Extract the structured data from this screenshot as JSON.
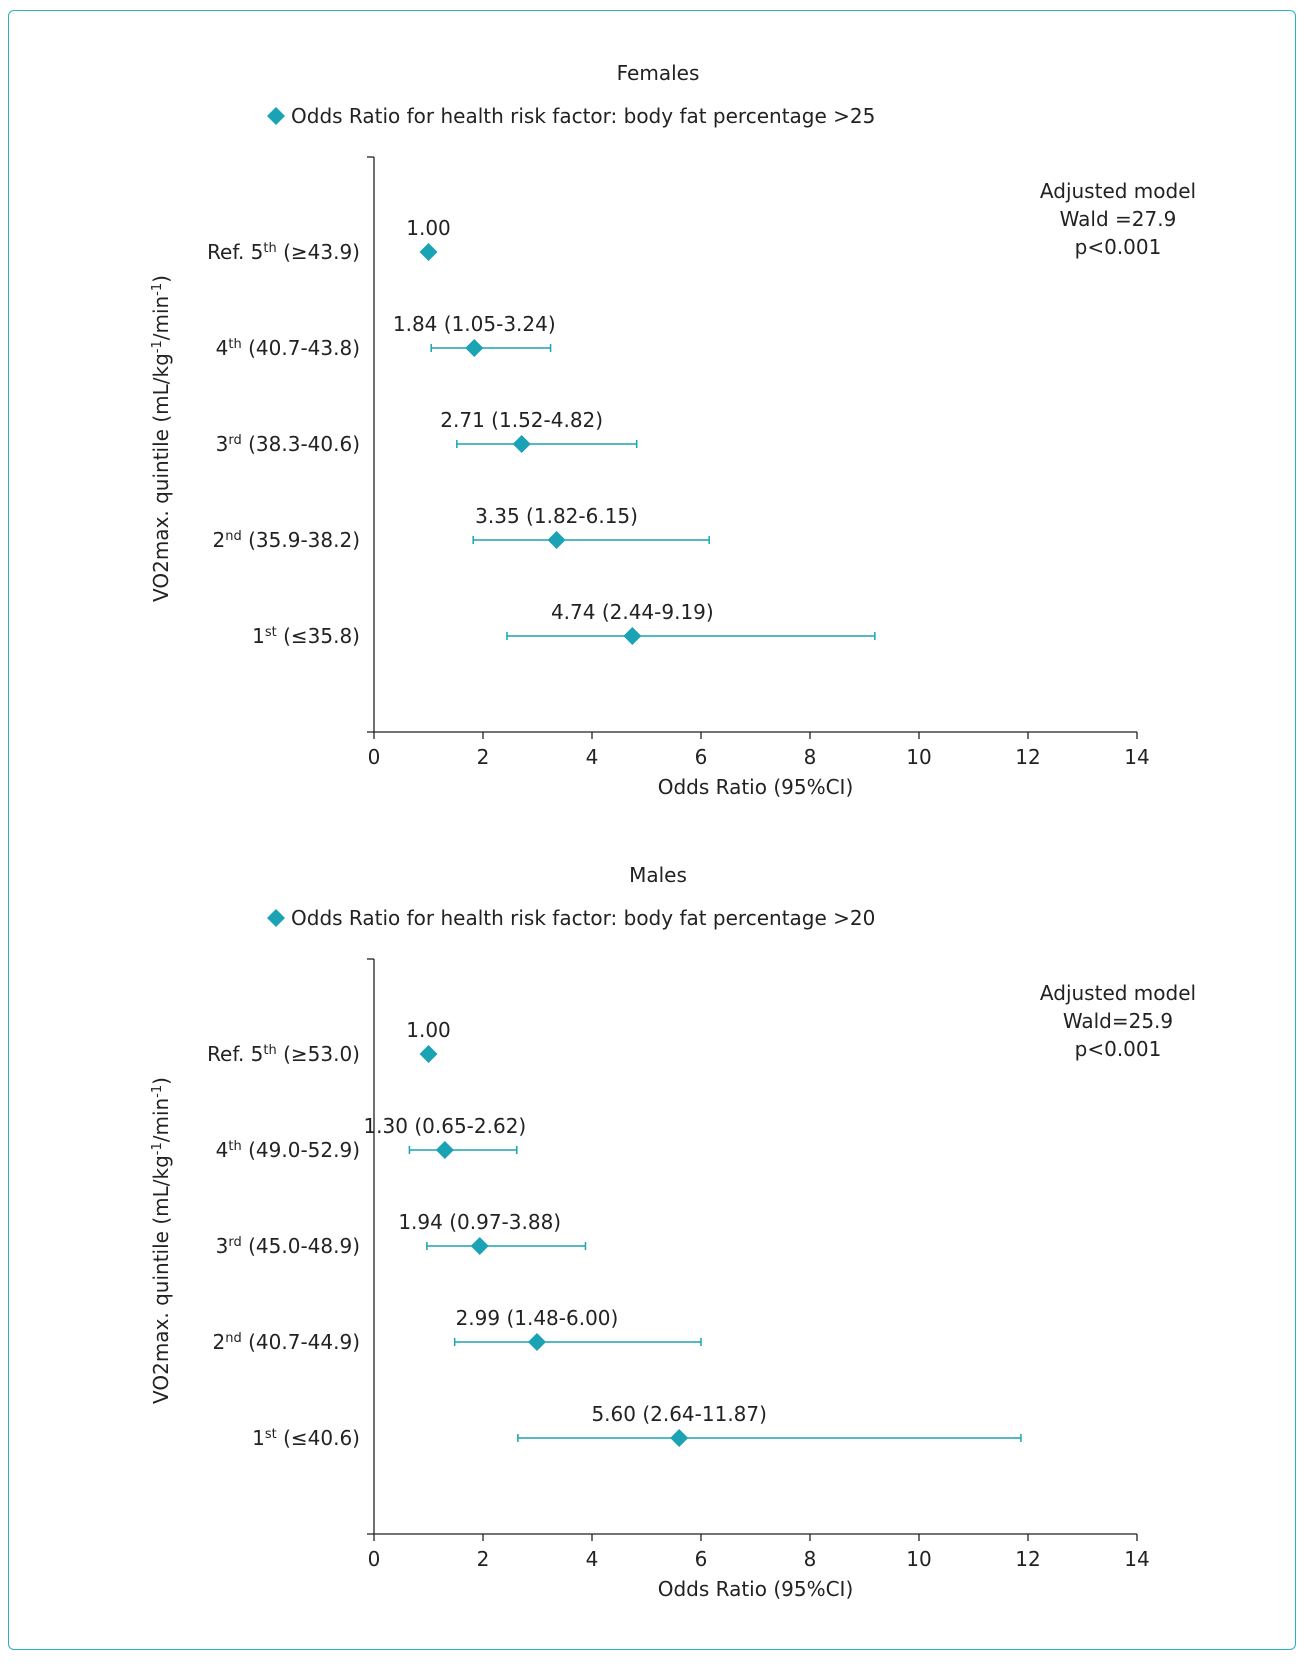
{
  "colors": {
    "marker": "#1aa3b4",
    "frame": "#2bb3bd",
    "axis": "#222222"
  },
  "chart_data": [
    {
      "type": "scatter",
      "title": "Females",
      "legend": "Odds Ratio for health risk factor: body fat percentage >25",
      "legend_placement": "top",
      "xlabel": "Odds Ratio (95%CI)",
      "ylabel": "VO2max. quintile (mL/kg-1/min-1)",
      "ylabel_parts": [
        "VO2max. quintile (mL/kg",
        "-1",
        "/min",
        "-1",
        ")"
      ],
      "xlim": [
        0,
        14
      ],
      "xticks": [
        "0",
        "2",
        "4",
        "6",
        "8",
        "10",
        "12",
        "14"
      ],
      "grid": false,
      "annotation": [
        "Adjusted model",
        "Wald =27.9",
        "p<0.001"
      ],
      "categories": [
        "Ref. 5th (≥43.9)",
        "4th (40.7-43.8)",
        "3rd (38.3-40.6)",
        "2nd (35.9-38.2)",
        "1st (≤35.8)"
      ],
      "category_parts": [
        [
          "Ref. 5",
          "th",
          " (≥43.9)"
        ],
        [
          "4",
          "th",
          " (40.7-43.8)"
        ],
        [
          "3",
          "rd",
          " (38.3-40.6)"
        ],
        [
          "2",
          "nd",
          " (35.9-38.2)"
        ],
        [
          "1",
          "st",
          " (≤35.8)"
        ]
      ],
      "series": [
        {
          "name": "Odds Ratio for health risk factor: body fat percentage >25",
          "values": [
            1.0,
            1.84,
            2.71,
            3.35,
            4.74
          ],
          "ci_low": [
            null,
            1.05,
            1.52,
            1.82,
            2.44
          ],
          "ci_high": [
            null,
            3.24,
            4.82,
            6.15,
            9.19
          ],
          "labels": [
            "1.00",
            "1.84 (1.05-3.24)",
            "2.71 (1.52-4.82)",
            "3.35 (1.82-6.15)",
            "4.74 (2.44-9.19)"
          ]
        }
      ]
    },
    {
      "type": "scatter",
      "title": "Males",
      "legend": "Odds Ratio for health risk factor: body fat percentage >20",
      "legend_placement": "top",
      "xlabel": "Odds Ratio (95%CI)",
      "ylabel": "VO2max. quintile (mL/kg-1/min-1)",
      "ylabel_parts": [
        "VO2max. quintile (mL/kg",
        "-1",
        "/min",
        "-1",
        ")"
      ],
      "xlim": [
        0,
        14
      ],
      "xticks": [
        "0",
        "2",
        "4",
        "6",
        "8",
        "10",
        "12",
        "14"
      ],
      "grid": false,
      "annotation": [
        "Adjusted model",
        "Wald=25.9",
        "p<0.001"
      ],
      "categories": [
        "Ref. 5th (≥53.0)",
        "4th (49.0-52.9)",
        "3rd (45.0-48.9)",
        "2nd (40.7-44.9)",
        "1st (≤40.6)"
      ],
      "category_parts": [
        [
          "Ref. 5",
          "th",
          " (≥53.0)"
        ],
        [
          "4",
          "th",
          " (49.0-52.9)"
        ],
        [
          "3",
          "rd",
          " (45.0-48.9)"
        ],
        [
          "2",
          "nd",
          " (40.7-44.9)"
        ],
        [
          "1",
          "st",
          " (≤40.6)"
        ]
      ],
      "series": [
        {
          "name": "Odds Ratio for health risk factor: body fat percentage >20",
          "values": [
            1.0,
            1.3,
            1.94,
            2.99,
            5.6
          ],
          "ci_low": [
            null,
            0.65,
            0.97,
            1.48,
            2.64
          ],
          "ci_high": [
            null,
            2.62,
            3.88,
            6.0,
            11.87
          ],
          "labels": [
            "1.00",
            "1.30 (0.65-2.62)",
            "1.94 (0.97-3.88)",
            "2.99 (1.48-6.00)",
            "5.60 (2.64-11.87)"
          ]
        }
      ]
    }
  ]
}
